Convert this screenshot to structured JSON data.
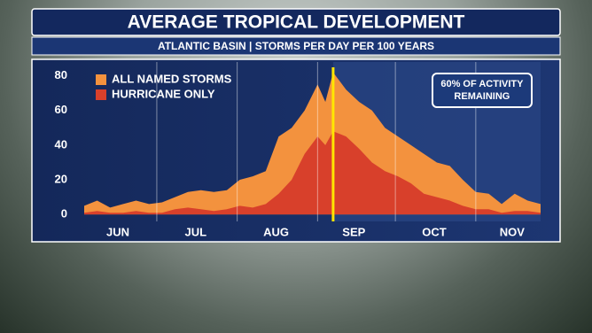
{
  "chart_data": {
    "type": "area",
    "title": "AVERAGE TROPICAL DEVELOPMENT",
    "subtitle": "ATLANTIC BASIN | STORMS PER DAY PER 100 YEARS",
    "annotation": [
      "60% OF ACTIVITY",
      "REMAINING"
    ],
    "x": [
      2,
      7,
      12,
      17,
      22,
      27,
      32,
      37,
      42,
      47,
      52,
      57,
      62,
      67,
      72,
      77,
      82,
      87,
      92,
      95,
      98,
      103,
      108,
      113,
      118,
      123,
      128,
      133,
      138,
      143,
      148,
      153,
      158,
      163,
      168,
      173,
      178
    ],
    "series": [
      {
        "name": "ALL NAMED STORMS",
        "color": "#f3923e",
        "values": [
          5,
          8,
          4,
          6,
          8,
          6,
          7,
          10,
          13,
          14,
          13,
          14,
          20,
          22,
          25,
          45,
          50,
          60,
          75,
          65,
          82,
          72,
          65,
          60,
          50,
          45,
          40,
          35,
          30,
          28,
          20,
          13,
          12,
          6,
          12,
          8,
          6
        ]
      },
      {
        "name": "HURRICANE ONLY",
        "color": "#d8402b",
        "values": [
          1,
          2,
          1,
          1,
          2,
          1,
          1,
          3,
          4,
          3,
          2,
          3,
          5,
          4,
          6,
          12,
          20,
          35,
          45,
          40,
          48,
          45,
          38,
          30,
          25,
          22,
          18,
          12,
          10,
          8,
          5,
          3,
          3,
          1,
          2,
          2,
          1
        ]
      }
    ],
    "xlim": [
      2,
      178
    ],
    "xticks": [
      {
        "value": 15,
        "label": "JUN"
      },
      {
        "value": 45,
        "label": "JUL"
      },
      {
        "value": 76,
        "label": "AUG"
      },
      {
        "value": 106,
        "label": "SEP"
      },
      {
        "value": 137,
        "label": "OCT"
      },
      {
        "value": 167,
        "label": "NOV"
      }
    ],
    "xgrid": [
      30,
      61,
      92,
      122,
      153
    ],
    "ylim": [
      -4,
      88
    ],
    "yticks": [
      0,
      20,
      40,
      60,
      80
    ],
    "marker_x": 98,
    "marker_color": "#ffe600"
  }
}
